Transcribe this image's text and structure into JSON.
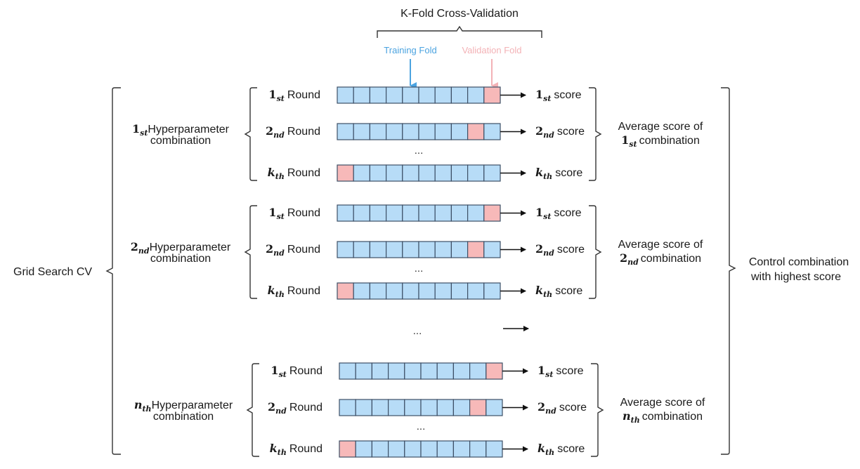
{
  "colors": {
    "training": "#b7dcf7",
    "validation": "#f7b9b9",
    "training_label": "#4ba3e0",
    "validation_label": "#f3b2b6",
    "outline": "#3d4f66"
  },
  "header": {
    "kfold_title": "K-Fold Cross-Validation",
    "training_fold_label": "Training Fold",
    "validation_fold_label": "Validation Fold"
  },
  "grid_search_label": "Grid Search CV",
  "final_label": [
    "Control combination",
    "with highest score"
  ],
  "folds_per_round": 10,
  "ellipsis": "...",
  "groups": [
    {
      "ord_sym": "1",
      "ord_sub": "st",
      "hp_label_line1": "Hyperparameter",
      "hp_label_line2": "combination",
      "avg_line1": "Average score of",
      "avg_line2": "combination",
      "rounds": [
        {
          "sym": "1",
          "sub": "st",
          "label": "Round",
          "score": "score",
          "validation_index": 9
        },
        {
          "sym": "2",
          "sub": "nd",
          "label": "Round",
          "score": "score",
          "validation_index": 8
        },
        {
          "sym": "k",
          "sub": "th",
          "label": "Round",
          "score": "score",
          "validation_index": 0
        }
      ]
    },
    {
      "ord_sym": "2",
      "ord_sub": "nd",
      "hp_label_line1": "Hyperparameter",
      "hp_label_line2": "combination",
      "avg_line1": "Average score of",
      "avg_line2": "combination",
      "rounds": [
        {
          "sym": "1",
          "sub": "st",
          "label": "Round",
          "score": "score",
          "validation_index": 9
        },
        {
          "sym": "2",
          "sub": "nd",
          "label": "Round",
          "score": "score",
          "validation_index": 8
        },
        {
          "sym": "k",
          "sub": "th",
          "label": "Round",
          "score": "score",
          "validation_index": 0
        }
      ]
    },
    {
      "ord_sym": "n",
      "ord_sub": "th",
      "hp_label_line1": "Hyperparameter",
      "hp_label_line2": "combination",
      "avg_line1": "Average score of",
      "avg_line2": "combination",
      "rounds": [
        {
          "sym": "1",
          "sub": "st",
          "label": "Round",
          "score": "score",
          "validation_index": 9
        },
        {
          "sym": "2",
          "sub": "nd",
          "label": "Round",
          "score": "score",
          "validation_index": 8
        },
        {
          "sym": "k",
          "sub": "th",
          "label": "Round",
          "score": "score",
          "validation_index": 0
        }
      ]
    }
  ]
}
